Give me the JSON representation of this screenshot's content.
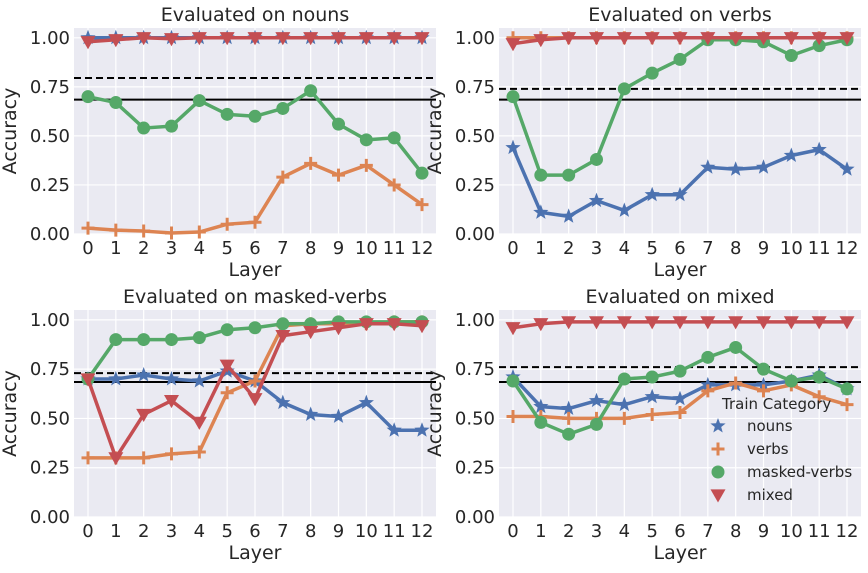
{
  "chart_data": {
    "type": "line",
    "panels": [
      {
        "title": "Evaluated on nouns",
        "xlabel": "Layer",
        "ylabel": "Accuracy",
        "ylim": [
          0,
          1.05
        ],
        "yticks": [
          "0.00",
          "0.25",
          "0.50",
          "0.75",
          "1.00"
        ],
        "x": [
          0,
          1,
          2,
          3,
          4,
          5,
          6,
          7,
          8,
          9,
          10,
          11,
          12
        ],
        "hlines": {
          "solid": 0.685,
          "dashed": 0.795
        },
        "series": [
          {
            "key": "nouns",
            "values": [
              1.0,
              1.0,
              1.0,
              1.0,
              1.0,
              1.0,
              1.0,
              1.0,
              1.0,
              1.0,
              1.0,
              1.0,
              1.0
            ]
          },
          {
            "key": "verbs",
            "values": [
              0.03,
              0.02,
              0.015,
              0.005,
              0.01,
              0.05,
              0.06,
              0.29,
              0.36,
              0.3,
              0.35,
              0.25,
              0.15
            ]
          },
          {
            "key": "masked-verbs",
            "values": [
              0.7,
              0.67,
              0.54,
              0.55,
              0.68,
              0.61,
              0.6,
              0.64,
              0.73,
              0.56,
              0.48,
              0.49,
              0.31
            ]
          },
          {
            "key": "mixed",
            "values": [
              0.98,
              0.99,
              1.0,
              0.995,
              1.0,
              1.0,
              1.0,
              1.0,
              1.0,
              1.0,
              1.0,
              1.0,
              1.0
            ]
          }
        ]
      },
      {
        "title": "Evaluated on verbs",
        "xlabel": "Layer",
        "ylabel": "Accuracy",
        "ylim": [
          0,
          1.05
        ],
        "yticks": [
          "0.00",
          "0.25",
          "0.50",
          "0.75",
          "1.00"
        ],
        "x": [
          0,
          1,
          2,
          3,
          4,
          5,
          6,
          7,
          8,
          9,
          10,
          11,
          12
        ],
        "hlines": {
          "solid": 0.685,
          "dashed": 0.74
        },
        "series": [
          {
            "key": "nouns",
            "values": [
              0.44,
              0.11,
              0.09,
              0.17,
              0.12,
              0.2,
              0.2,
              0.34,
              0.33,
              0.34,
              0.4,
              0.43,
              0.33
            ]
          },
          {
            "key": "verbs",
            "values": [
              1.0,
              1.0,
              1.0,
              1.0,
              1.0,
              1.0,
              1.0,
              1.0,
              1.0,
              1.0,
              1.0,
              1.0,
              1.0
            ]
          },
          {
            "key": "masked-verbs",
            "values": [
              0.7,
              0.3,
              0.3,
              0.38,
              0.74,
              0.82,
              0.89,
              0.99,
              0.99,
              0.98,
              0.91,
              0.96,
              0.99
            ]
          },
          {
            "key": "mixed",
            "values": [
              0.97,
              0.99,
              1.0,
              1.0,
              1.0,
              1.0,
              1.0,
              1.0,
              1.0,
              1.0,
              1.0,
              1.0,
              1.0
            ]
          }
        ]
      },
      {
        "title": "Evaluated on masked-verbs",
        "xlabel": "Layer",
        "ylabel": "Accuracy",
        "ylim": [
          0,
          1.05
        ],
        "yticks": [
          "0.00",
          "0.25",
          "0.50",
          "0.75",
          "1.00"
        ],
        "x": [
          0,
          1,
          2,
          3,
          4,
          5,
          6,
          7,
          8,
          9,
          10,
          11,
          12
        ],
        "hlines": {
          "solid": 0.685,
          "dashed": 0.73
        },
        "series": [
          {
            "key": "nouns",
            "values": [
              0.7,
              0.7,
              0.72,
              0.7,
              0.69,
              0.74,
              0.69,
              0.58,
              0.52,
              0.51,
              0.58,
              0.44,
              0.44
            ]
          },
          {
            "key": "verbs",
            "values": [
              0.3,
              0.3,
              0.3,
              0.32,
              0.33,
              0.63,
              0.69,
              0.97,
              0.98,
              0.98,
              0.98,
              0.99,
              0.99
            ]
          },
          {
            "key": "masked-verbs",
            "values": [
              0.7,
              0.9,
              0.9,
              0.9,
              0.91,
              0.95,
              0.96,
              0.98,
              0.98,
              0.99,
              0.99,
              0.99,
              0.99
            ]
          },
          {
            "key": "mixed",
            "values": [
              0.7,
              0.3,
              0.52,
              0.59,
              0.48,
              0.77,
              0.6,
              0.92,
              0.94,
              0.96,
              0.98,
              0.98,
              0.97
            ]
          }
        ]
      },
      {
        "title": "Evaluated on mixed",
        "xlabel": "Layer",
        "ylabel": "Accuracy",
        "ylim": [
          0,
          1.05
        ],
        "yticks": [
          "0.00",
          "0.25",
          "0.50",
          "0.75",
          "1.00"
        ],
        "x": [
          0,
          1,
          2,
          3,
          4,
          5,
          6,
          7,
          8,
          9,
          10,
          11,
          12
        ],
        "hlines": {
          "solid": 0.685,
          "dashed": 0.76
        },
        "series": [
          {
            "key": "nouns",
            "values": [
              0.71,
              0.56,
              0.55,
              0.59,
              0.57,
              0.61,
              0.6,
              0.67,
              0.67,
              0.67,
              0.69,
              0.72,
              0.65
            ]
          },
          {
            "key": "verbs",
            "values": [
              0.51,
              0.51,
              0.5,
              0.5,
              0.5,
              0.52,
              0.53,
              0.64,
              0.68,
              0.64,
              0.67,
              0.61,
              0.57
            ]
          },
          {
            "key": "masked-verbs",
            "values": [
              0.69,
              0.48,
              0.42,
              0.47,
              0.7,
              0.71,
              0.74,
              0.81,
              0.86,
              0.75,
              0.69,
              0.71,
              0.65
            ]
          },
          {
            "key": "mixed",
            "values": [
              0.96,
              0.98,
              0.99,
              0.99,
              0.99,
              0.99,
              0.99,
              0.99,
              0.99,
              0.99,
              0.99,
              0.99,
              0.99
            ]
          }
        ]
      }
    ],
    "legend": {
      "title": "Train Category",
      "placement": "lower-right of bottom-right panel",
      "entries": [
        "nouns",
        "verbs",
        "masked-verbs",
        "mixed"
      ]
    },
    "series_styles": {
      "nouns": {
        "color": "#4c72b0",
        "marker": "star"
      },
      "verbs": {
        "color": "#dd8452",
        "marker": "plus"
      },
      "masked-verbs": {
        "color": "#55a868",
        "marker": "circle"
      },
      "mixed": {
        "color": "#c44e52",
        "marker": "triangle-down"
      }
    },
    "style": {
      "plot_bg": "#eaeaf2",
      "grid_color": "#ffffff",
      "reference_line_color": "#000000",
      "grid": true
    }
  }
}
